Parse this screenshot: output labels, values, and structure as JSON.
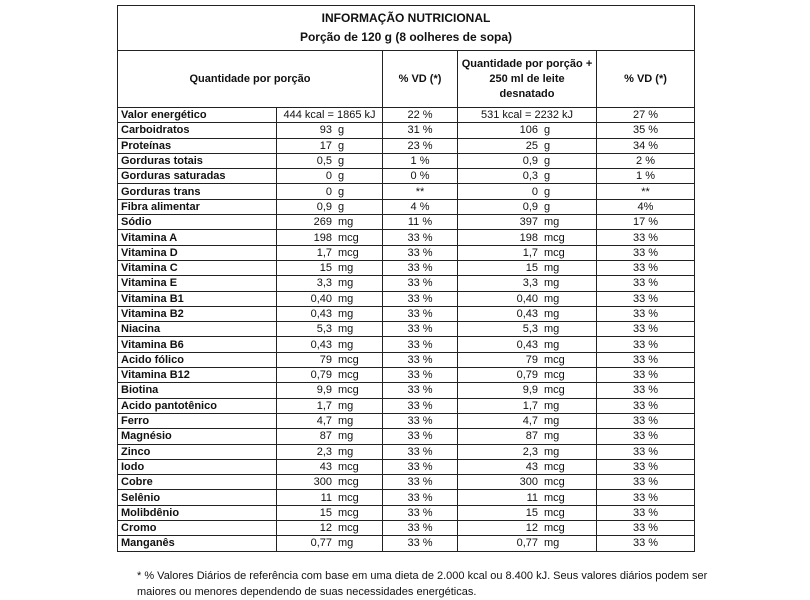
{
  "title": "INFORMAÇÃO NUTRICIONAL",
  "subtitle": "Porção de 120 g (8 oolheres de sopa)",
  "headers": {
    "qty": "Quantidade por porção",
    "vd": "% VD (*)",
    "qty_milk": "Quantidade por porção + 250 ml de leite desnatado",
    "vd_milk": "% VD (*)"
  },
  "energy": {
    "name": "Valor energético",
    "qty": "444 kcal = 1865 kJ",
    "vd": "22 %",
    "qty_milk": "531 kcal = 2232 kJ",
    "vd_milk": "27 %"
  },
  "rows": [
    [
      "Carboidratos",
      "93",
      "g",
      "31 %",
      "106",
      "g",
      "35 %"
    ],
    [
      "Proteínas",
      "17",
      "g",
      "23 %",
      "25",
      "g",
      "34 %"
    ],
    [
      "Gorduras totais",
      "0,5",
      "g",
      "1 %",
      "0,9",
      "g",
      "2 %"
    ],
    [
      "Gorduras saturadas",
      "0",
      "g",
      "0 %",
      "0,3",
      "g",
      "1 %"
    ],
    [
      "Gorduras trans",
      "0",
      "g",
      "**",
      "0",
      "g",
      "**"
    ],
    [
      "Fibra alimentar",
      "0,9",
      "g",
      "4 %",
      "0,9",
      "g",
      "4%"
    ],
    [
      "Sódio",
      "269",
      "mg",
      "11 %",
      "397",
      "mg",
      "17 %"
    ],
    [
      "Vitamina A",
      "198",
      "mcg",
      "33 %",
      "198",
      "mcg",
      "33 %"
    ],
    [
      "Vitamina D",
      "1,7",
      "mcg",
      "33 %",
      "1,7",
      "mcg",
      "33 %"
    ],
    [
      "Vitamina C",
      "15",
      "mg",
      "33 %",
      "15",
      "mg",
      "33 %"
    ],
    [
      "Vitamina E",
      "3,3",
      "mg",
      "33 %",
      "3,3",
      "mg",
      "33 %"
    ],
    [
      "Vitamina B1",
      "0,40",
      "mg",
      "33 %",
      "0,40",
      "mg",
      "33 %"
    ],
    [
      "Vitamina B2",
      "0,43",
      "mg",
      "33 %",
      "0,43",
      "mg",
      "33 %"
    ],
    [
      "Niacina",
      "5,3",
      "mg",
      "33 %",
      "5,3",
      "mg",
      "33 %"
    ],
    [
      "Vitamina B6",
      "0,43",
      "mg",
      "33 %",
      "0,43",
      "mg",
      "33 %"
    ],
    [
      "Acido fólico",
      "79",
      "mcg",
      "33 %",
      "79",
      "mcg",
      "33 %"
    ],
    [
      "Vitamina B12",
      "0,79",
      "mcg",
      "33 %",
      "0,79",
      "mcg",
      "33 %"
    ],
    [
      "Biotina",
      "9,9",
      "mcg",
      "33 %",
      "9,9",
      "mcg",
      "33 %"
    ],
    [
      "Acido pantotênico",
      "1,7",
      "mg",
      "33 %",
      "1,7",
      "mg",
      "33 %"
    ],
    [
      "Ferro",
      "4,7",
      "mg",
      "33 %",
      "4,7",
      "mg",
      "33 %"
    ],
    [
      "Magnésio",
      "87",
      "mg",
      "33 %",
      "87",
      "mg",
      "33 %"
    ],
    [
      "Zinco",
      "2,3",
      "mg",
      "33 %",
      "2,3",
      "mg",
      "33 %"
    ],
    [
      "Iodo",
      "43",
      "mcg",
      "33 %",
      "43",
      "mcg",
      "33 %"
    ],
    [
      "Cobre",
      "300",
      "mcg",
      "33 %",
      "300",
      "mcg",
      "33 %"
    ],
    [
      "Selênio",
      "11",
      "mcg",
      "33 %",
      "11",
      "mcg",
      "33 %"
    ],
    [
      "Molibdênio",
      "15",
      "mcg",
      "33 %",
      "15",
      "mcg",
      "33 %"
    ],
    [
      "Cromo",
      "12",
      "mcg",
      "33 %",
      "12",
      "mcg",
      "33 %"
    ],
    [
      "Manganês",
      "0,77",
      "mg",
      "33 %",
      "0,77",
      "mg",
      "33 %"
    ]
  ],
  "footnote": "* % Valores Diários de referência com base em uma dieta de 2.000 kcal ou 8.400 kJ. Seus valores diários podem ser maiores ou menores dependendo de suas necessidades energéticas."
}
